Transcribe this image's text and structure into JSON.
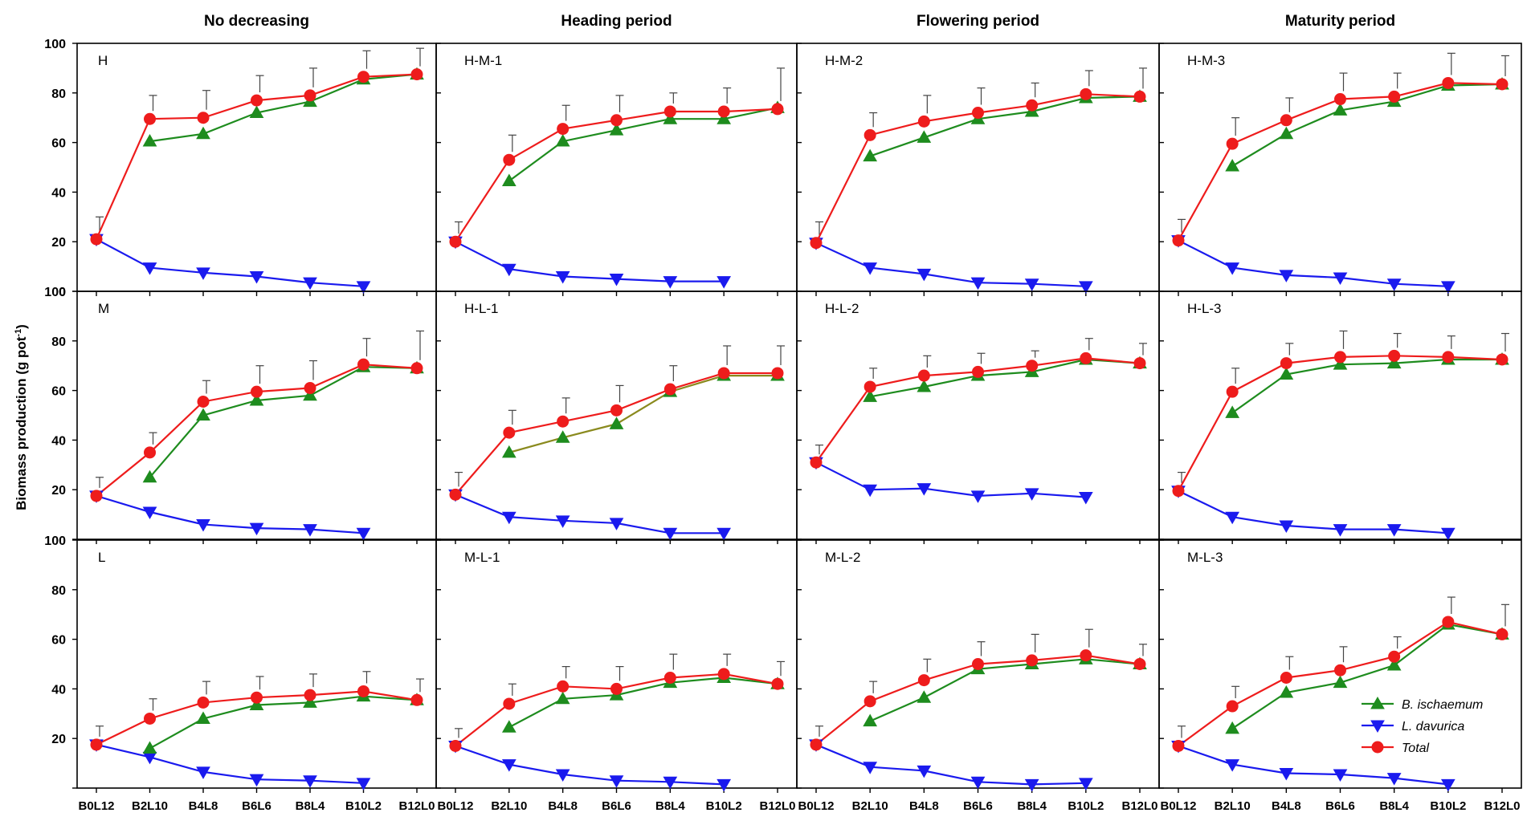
{
  "figure": {
    "y_axis_label": "Biomass production (g pot",
    "y_axis_label_sup": "-1",
    "y_axis_label_end": ")",
    "column_headers": [
      "No decreasing",
      "Heading period",
      "Flowering period",
      "Maturity period"
    ]
  },
  "colors": {
    "b_ischaemum": "#1e8c1e",
    "l_davurica": "#1a1aee",
    "total": "#ee1c1c",
    "heading_mixed": "#8a8a1e",
    "axis": "#000000"
  },
  "legend": {
    "items": [
      {
        "label": "B. ischaemum",
        "series": "b",
        "italic": true
      },
      {
        "label": "L. davurica",
        "series": "l",
        "italic": true
      },
      {
        "label": "Total",
        "series": "t",
        "italic": true
      }
    ],
    "placement": "bottom-right of last panel"
  },
  "chart_data": {
    "type": "line",
    "layout": "3 rows x 4 columns panel grid",
    "categories": [
      "B0L12",
      "B2L10",
      "B4L8",
      "B6L6",
      "B8L4",
      "B10L2",
      "B12L0"
    ],
    "ylim": [
      0,
      100
    ],
    "yticks": [
      0,
      20,
      40,
      60,
      80,
      100
    ],
    "panels": [
      {
        "label": "H",
        "row": 0,
        "col": 0,
        "b": [
          null,
          60.5,
          63.5,
          72,
          76.5,
          85.5,
          87.5
        ],
        "l": [
          21,
          9.5,
          7.5,
          6,
          3.5,
          2,
          null
        ],
        "t": [
          21,
          69.5,
          70,
          77,
          79,
          86.5,
          87.5
        ],
        "err": [
          30,
          79,
          81,
          87,
          90,
          97,
          98
        ]
      },
      {
        "label": "H-M-1",
        "row": 0,
        "col": 1,
        "b": [
          null,
          44.5,
          60.5,
          65,
          69.5,
          69.5,
          74
        ],
        "l": [
          20,
          9,
          6,
          5,
          4,
          4,
          null
        ],
        "t": [
          20,
          53,
          65.5,
          69,
          72.5,
          72.5,
          73.5
        ],
        "err": [
          28,
          63,
          75,
          79,
          80,
          82,
          90
        ]
      },
      {
        "label": "H-M-2",
        "row": 0,
        "col": 2,
        "b": [
          null,
          54.5,
          62,
          69.5,
          72.5,
          78,
          78.5
        ],
        "l": [
          19.5,
          9.5,
          7,
          3.5,
          3,
          2,
          null
        ],
        "t": [
          19.5,
          63,
          68.5,
          72,
          75,
          79.5,
          78.5
        ],
        "err": [
          28,
          72,
          79,
          82,
          84,
          89,
          90
        ]
      },
      {
        "label": "H-M-3",
        "row": 0,
        "col": 3,
        "b": [
          null,
          50.5,
          63.5,
          73,
          76.5,
          83,
          83.5
        ],
        "l": [
          20.5,
          9.5,
          6.5,
          5.5,
          3,
          2,
          null
        ],
        "t": [
          20.5,
          59.5,
          69,
          77.5,
          78.5,
          84,
          83.5
        ],
        "err": [
          29,
          70,
          78,
          88,
          88,
          96,
          95
        ]
      },
      {
        "label": "M",
        "row": 1,
        "col": 0,
        "b": [
          null,
          25,
          50,
          56,
          58,
          69.5,
          69
        ],
        "l": [
          17.5,
          11,
          6,
          4.5,
          4,
          2.5,
          null
        ],
        "t": [
          17.5,
          35,
          55.5,
          59.5,
          61,
          70.5,
          69
        ],
        "err": [
          25,
          43,
          64,
          70,
          72,
          81,
          84
        ]
      },
      {
        "label": "H-L-1",
        "row": 1,
        "col": 1,
        "b": [
          null,
          35,
          41,
          46.5,
          59.5,
          66,
          66
        ],
        "l": [
          18,
          9,
          7.5,
          6.5,
          2.5,
          2.5,
          null
        ],
        "t": [
          18,
          43,
          47.5,
          52,
          60.5,
          67,
          67
        ],
        "err": [
          27,
          52,
          57,
          62,
          70,
          78,
          78
        ],
        "green_line_color": "heading_mixed"
      },
      {
        "label": "H-L-2",
        "row": 1,
        "col": 2,
        "b": [
          null,
          57.5,
          61.5,
          66,
          67.5,
          72.5,
          71
        ],
        "l": [
          31,
          20,
          20.5,
          17.5,
          18.5,
          17,
          null
        ],
        "t": [
          31,
          61.5,
          66,
          67.5,
          70,
          73,
          71
        ],
        "err": [
          38,
          69,
          74,
          75,
          76,
          81,
          79
        ]
      },
      {
        "label": "H-L-3",
        "row": 1,
        "col": 3,
        "b": [
          null,
          51,
          66.5,
          70.5,
          71,
          72.5,
          72.5
        ],
        "l": [
          19.5,
          9,
          5.5,
          4,
          4,
          2.5,
          null
        ],
        "t": [
          19.5,
          59.5,
          71,
          73.5,
          74,
          73.5,
          72.5
        ],
        "err": [
          27,
          69,
          79,
          84,
          83,
          82,
          83
        ]
      },
      {
        "label": "L",
        "row": 2,
        "col": 0,
        "b": [
          null,
          16,
          28,
          33.5,
          34.5,
          37,
          35.5
        ],
        "l": [
          17.5,
          12.5,
          6.5,
          3.5,
          3,
          2,
          null
        ],
        "t": [
          17.5,
          28,
          34.5,
          36.5,
          37.5,
          39,
          35.5
        ],
        "err": [
          25,
          36,
          43,
          45,
          46,
          47,
          44
        ]
      },
      {
        "label": "M-L-1",
        "row": 2,
        "col": 1,
        "b": [
          null,
          24.5,
          36,
          37.5,
          42.5,
          44.5,
          42
        ],
        "l": [
          17,
          9.5,
          5.5,
          3,
          2.5,
          1.5,
          null
        ],
        "t": [
          17,
          34,
          41,
          40,
          44.5,
          46,
          42
        ],
        "err": [
          24,
          42,
          49,
          49,
          54,
          54,
          51
        ]
      },
      {
        "label": "M-L-2",
        "row": 2,
        "col": 2,
        "b": [
          null,
          27,
          36.5,
          48,
          50,
          52,
          50
        ],
        "l": [
          17.5,
          8.5,
          7,
          2.5,
          1.5,
          2,
          null
        ],
        "t": [
          17.5,
          35,
          43.5,
          50,
          51.5,
          53.5,
          50
        ],
        "err": [
          25,
          43,
          52,
          59,
          62,
          64,
          58
        ]
      },
      {
        "label": "M-L-3",
        "row": 2,
        "col": 3,
        "b": [
          null,
          24,
          38.5,
          42.5,
          49.5,
          66,
          62
        ],
        "l": [
          17,
          9.5,
          6,
          5.5,
          4,
          1.5,
          null
        ],
        "t": [
          17,
          33,
          44.5,
          47.5,
          53,
          67,
          62
        ],
        "err": [
          25,
          41,
          53,
          57,
          61,
          77,
          74
        ]
      }
    ]
  }
}
